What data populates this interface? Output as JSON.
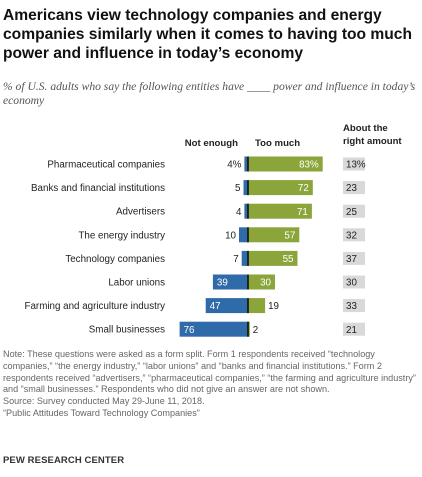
{
  "title": "Americans view technology companies and energy companies similarly when it comes to having too much power and influence in today’s economy",
  "subtitle": "% of U.S. adults who say the following entities have ____ power and influence in today’s economy",
  "colors": {
    "not_enough": "#2f6ba8",
    "too_much": "#8ba53a",
    "about_right_box": "#d9d9d9",
    "divider": "#111111"
  },
  "chart_data": {
    "type": "bar",
    "categories": [
      "Pharmaceutical companies",
      "Banks and financial institutions",
      "Advertisers",
      "The energy industry",
      "Technology companies",
      "Labor unions",
      "Farming and agriculture industry",
      "Small businesses"
    ],
    "series": [
      {
        "name": "Not enough",
        "values": [
          4,
          5,
          4,
          10,
          7,
          39,
          47,
          76
        ],
        "labels": [
          "4%",
          "5",
          "4",
          "10",
          "7",
          "39",
          "47",
          "76"
        ]
      },
      {
        "name": "Too much",
        "values": [
          83,
          72,
          71,
          57,
          55,
          30,
          19,
          2
        ],
        "labels": [
          "83%",
          "72",
          "71",
          "57",
          "55",
          "30",
          "19",
          "2"
        ]
      },
      {
        "name": "About the right amount",
        "values": [
          13,
          23,
          25,
          32,
          37,
          30,
          33,
          21
        ],
        "labels": [
          "13%",
          "23",
          "25",
          "32",
          "37",
          "30",
          "33",
          "21"
        ]
      }
    ]
  },
  "note": "Note: These questions were asked as a form split. Form 1 respondents received “technology companies,” “the energy industry,” “labor unions” and “banks and financial institutions.” Form 2 respondents received “advertisers,” “pharmaceutical companies,” “the farming and agriculture industry” and “small businesses.” Respondents who did not give an answer are not shown.",
  "source": "Source: Survey conducted May 29-June 11, 2018.",
  "report": "“Public Attitudes Toward Technology Companies”",
  "footer": "PEW RESEARCH CENTER"
}
